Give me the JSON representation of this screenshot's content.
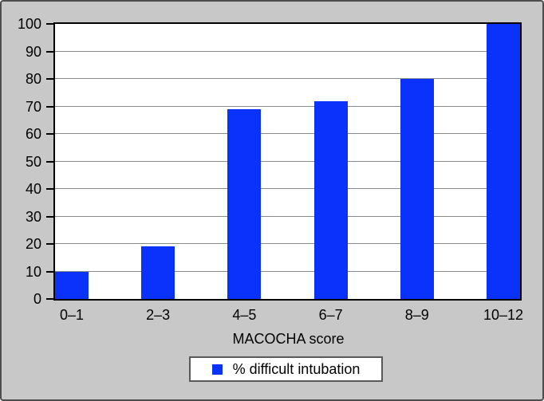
{
  "figure": {
    "background_color": "#c8c8c8",
    "outer_border_color": "#4d4d4d",
    "plot_background_color": "#ffffff",
    "gridline_color": "#8a8a8a"
  },
  "chart_data": {
    "type": "bar",
    "title": "",
    "categories": [
      "0–1",
      "2–3",
      "4–5",
      "6–7",
      "8–9",
      "10–12"
    ],
    "values": [
      10,
      19,
      69,
      72,
      80,
      100
    ],
    "series": [
      {
        "name": "% difficult intubation",
        "values": [
          10,
          19,
          69,
          72,
          80,
          100
        ],
        "color": "#0a32fa"
      }
    ],
    "xlabel": "MACOCHA score",
    "ylabel": "",
    "ylim": [
      0,
      100
    ],
    "yticks": [
      0,
      10,
      20,
      30,
      40,
      50,
      60,
      70,
      80,
      90,
      100
    ],
    "grid": "horizontal",
    "legend_position": "bottom",
    "bar_color": "#0a32fa"
  },
  "legend": {
    "label": "% difficult intubation",
    "swatch_color": "#0a32fa"
  },
  "x_axis": {
    "title": "MACOCHA score"
  }
}
